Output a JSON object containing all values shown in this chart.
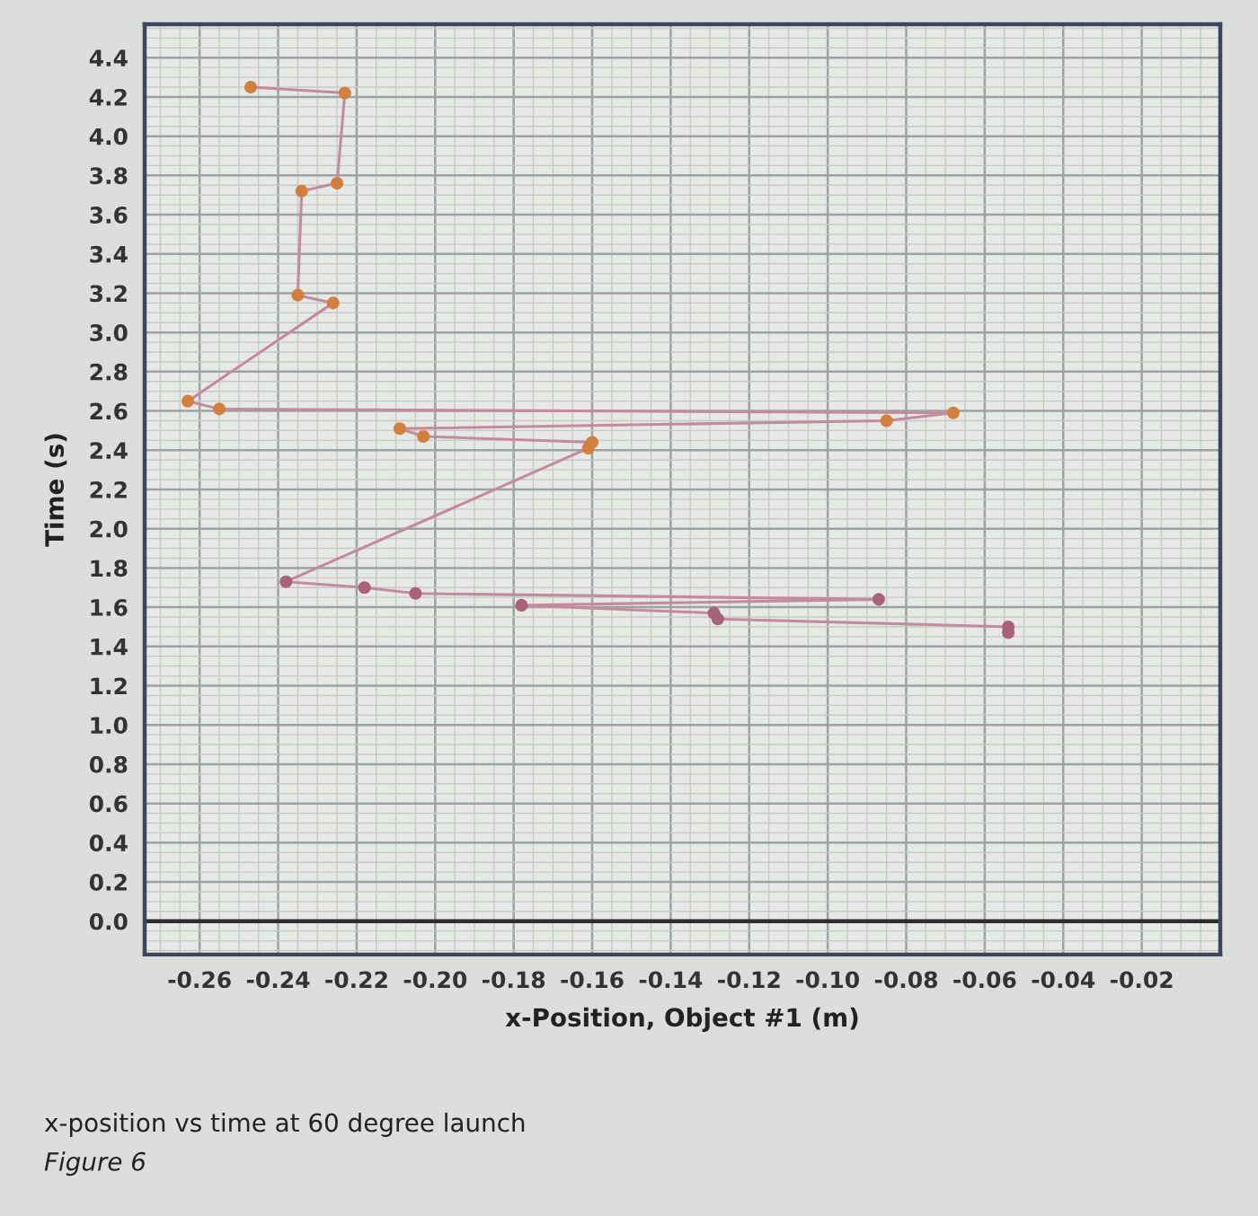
{
  "chart_data": {
    "type": "line",
    "xlabel": "x-Position, Object #1 (m)",
    "ylabel": "Time (s)",
    "annotations": [
      "x-position vs time at 60 degree launch",
      "Figure 6"
    ],
    "x": [
      -0.054,
      -0.054,
      -0.128,
      -0.129,
      -0.178,
      -0.087,
      -0.205,
      -0.218,
      -0.238,
      -0.161,
      -0.16,
      -0.203,
      -0.209,
      -0.085,
      -0.068,
      -0.255,
      -0.263,
      -0.226,
      -0.235,
      -0.234,
      -0.225,
      -0.223,
      -0.247
    ],
    "values": [
      1.47,
      1.5,
      1.54,
      1.57,
      1.61,
      1.64,
      1.67,
      1.7,
      1.73,
      2.41,
      2.44,
      2.47,
      2.51,
      2.55,
      2.59,
      2.61,
      2.65,
      3.15,
      3.19,
      3.72,
      3.76,
      4.22,
      4.25
    ],
    "color": "#c48b9f",
    "colors": [
      "#a9627a",
      "#a9627a",
      "#a9627a",
      "#a9627a",
      "#a9627a",
      "#a9627a",
      "#a9627a",
      "#a9627a",
      "#a9627a",
      "#d27f3f",
      "#d27f3f",
      "#d27f3f",
      "#d27f3f",
      "#d27f3f",
      "#d27f3f",
      "#d27f3f",
      "#d27f3f",
      "#d27f3f",
      "#d27f3f",
      "#d27f3f",
      "#d27f3f",
      "#d27f3f",
      "#d27f3f"
    ],
    "xlim": [
      -0.274,
      0.0
    ],
    "xticks": [
      -0.26,
      -0.24,
      -0.22,
      {
        "value": -0.2,
        "label": "-0.20"
      },
      -0.18,
      -0.16,
      -0.14,
      -0.12,
      {
        "value": -0.1,
        "label": "-0.10"
      },
      -0.08,
      -0.06,
      -0.04,
      -0.02
    ],
    "ylim": [
      -0.17,
      4.57
    ],
    "yticks": [
      {
        "value": 0,
        "label": "0.0"
      },
      0.2,
      0.4,
      0.6,
      0.8,
      {
        "value": 1,
        "label": "1.0"
      },
      1.2,
      1.4,
      1.6,
      1.8,
      {
        "value": 2,
        "label": "2.0"
      },
      2.2,
      2.4,
      2.6,
      2.8,
      {
        "value": 3,
        "label": "3.0"
      },
      3.2,
      3.4,
      3.6,
      3.8,
      {
        "value": 4,
        "label": "4.0"
      },
      4.2,
      4.4
    ],
    "grid": true,
    "marker": "circle",
    "line_style": "solid",
    "ref_lines": [
      {
        "axis": "y",
        "value": 0,
        "color": "#2e2e2e"
      }
    ]
  }
}
